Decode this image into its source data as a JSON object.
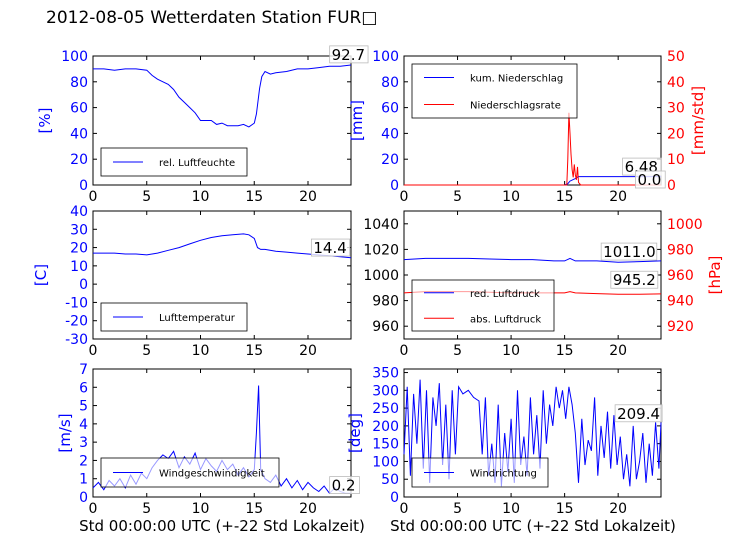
{
  "figure": {
    "title": "2012-08-05 Wetterdaten Station FUR□"
  },
  "chart_data": [
    {
      "type": "line",
      "id": "humidity",
      "title": "",
      "xlabel": "",
      "ylabel": "[%]",
      "xlim": [
        0,
        24
      ],
      "xticks": [
        0,
        5,
        10,
        15,
        20
      ],
      "ylim": [
        0,
        100
      ],
      "yticks": [
        0,
        20,
        40,
        60,
        80,
        100
      ],
      "series": [
        {
          "name": "rel. Luftfeuchte",
          "color": "#0000ff",
          "x": [
            0,
            1,
            2,
            3,
            4,
            5,
            5.5,
            6,
            6.5,
            7,
            7.5,
            8,
            8.5,
            9,
            9.5,
            10,
            10.5,
            11,
            11.5,
            12,
            12.5,
            13,
            13.5,
            14,
            14.5,
            15,
            15.2,
            15.5,
            15.7,
            16,
            16.5,
            17,
            18,
            19,
            20,
            21,
            22,
            23,
            24
          ],
          "y": [
            90,
            90,
            89,
            90,
            90,
            89,
            85,
            82,
            80,
            78,
            74,
            68,
            64,
            60,
            56,
            50,
            50,
            50,
            47,
            48,
            46,
            46,
            46,
            47,
            45,
            48,
            55,
            75,
            84,
            88,
            86,
            87,
            88,
            90,
            90,
            91,
            92,
            92,
            93
          ]
        }
      ],
      "annotations": [
        {
          "text": "92.7",
          "x": 22.2,
          "y": 97
        }
      ],
      "legend": {
        "placement": "lower-left"
      }
    },
    {
      "type": "line",
      "id": "precipitation",
      "title": "",
      "xlabel": "",
      "ylabel": "[mm]",
      "ylabel_right": "[mm/std]",
      "xlim": [
        0,
        24
      ],
      "xticks": [
        0,
        5,
        10,
        15,
        20
      ],
      "ylim": [
        0,
        100
      ],
      "yticks": [
        0,
        20,
        40,
        60,
        80,
        100
      ],
      "ylim_right": [
        0,
        50
      ],
      "yticks_right": [
        0,
        10,
        20,
        30,
        40,
        50
      ],
      "series": [
        {
          "name": "kum. Niederschlag",
          "color": "#0000ff",
          "axis": "left",
          "x": [
            0,
            14,
            15,
            15.3,
            15.5,
            16,
            16.3,
            24
          ],
          "y": [
            0,
            0,
            0,
            1,
            3,
            5,
            6.48,
            6.48
          ]
        },
        {
          "name": "Niederschlagsrate",
          "color": "#ff0000",
          "axis": "right",
          "x": [
            0,
            15.2,
            15.3,
            15.4,
            15.5,
            15.6,
            15.7,
            15.8,
            15.9,
            16.0,
            16.1,
            16.2,
            16.3,
            16.5,
            24
          ],
          "y": [
            0,
            0,
            10,
            28,
            20,
            12,
            6,
            3,
            8,
            4,
            2,
            7,
            1,
            0,
            0
          ]
        }
      ],
      "annotations": [
        {
          "text": "6.48",
          "x": 20.6,
          "y": 10
        },
        {
          "text": "0.0",
          "x": 21.8,
          "y": 0
        }
      ],
      "legend": {
        "placement": "upper-left"
      }
    },
    {
      "type": "line",
      "id": "temperature",
      "title": "",
      "xlabel": "",
      "ylabel": "[C]",
      "xlim": [
        0,
        24
      ],
      "xticks": [
        0,
        5,
        10,
        15,
        20
      ],
      "ylim": [
        -30,
        40
      ],
      "yticks": [
        -30,
        -20,
        -10,
        0,
        10,
        20,
        30,
        40
      ],
      "series": [
        {
          "name": "Lufttemperatur",
          "color": "#0000ff",
          "x": [
            0,
            1,
            2,
            3,
            4,
            5,
            6,
            7,
            8,
            9,
            10,
            11,
            12,
            13,
            14,
            14.5,
            15,
            15.3,
            15.6,
            16,
            17,
            18,
            19,
            20,
            21,
            22,
            23,
            24
          ],
          "y": [
            17,
            17,
            17,
            16.5,
            16.5,
            16,
            17,
            18.5,
            20,
            22,
            24,
            25.5,
            26.5,
            27,
            27.5,
            27,
            25,
            20,
            19,
            19,
            18,
            17.5,
            17,
            16.5,
            16,
            15.5,
            15,
            14.4
          ]
        }
      ],
      "annotations": [
        {
          "text": "14.4",
          "x": 20.5,
          "y": 17
        }
      ],
      "legend": {
        "placement": "lower-left"
      }
    },
    {
      "type": "line",
      "id": "pressure",
      "title": "",
      "xlabel": "",
      "ylabel": "",
      "ylabel_right": "[hPa]",
      "xlim": [
        0,
        24
      ],
      "xticks": [
        0,
        5,
        10,
        15,
        20
      ],
      "ylim": [
        950,
        1050
      ],
      "yticks": [
        960,
        980,
        1000,
        1020,
        1040
      ],
      "ylim_right": [
        910,
        1010
      ],
      "yticks_right": [
        920,
        940,
        960,
        980,
        1000
      ],
      "series": [
        {
          "name": "red. Luftdruck",
          "color": "#0000ff",
          "axis": "left",
          "x": [
            0,
            2,
            4,
            6,
            8,
            10,
            12,
            14,
            15,
            15.5,
            16,
            18,
            20,
            22,
            24
          ],
          "y": [
            1012,
            1013,
            1013,
            1013,
            1012.5,
            1012,
            1012,
            1011,
            1011,
            1013,
            1011,
            1011,
            1010,
            1010.5,
            1011
          ]
        },
        {
          "name": "abs. Luftdruck",
          "color": "#ff0000",
          "axis": "right",
          "x": [
            0,
            2,
            4,
            6,
            8,
            10,
            12,
            14,
            15,
            15.5,
            16,
            18,
            20,
            22,
            24
          ],
          "y": [
            946,
            947,
            947,
            947,
            946.5,
            946,
            946,
            946,
            946,
            947,
            946,
            945.5,
            945,
            945,
            945.2
          ]
        }
      ],
      "annotations": [
        {
          "text": "1011.0",
          "x": 18.6,
          "y": 1014
        },
        {
          "text": "945.2",
          "x": 19.5,
          "y": 992
        }
      ],
      "legend": {
        "placement": "lower-left"
      }
    },
    {
      "type": "line",
      "id": "wind-speed",
      "title": "",
      "xlabel": "Std 00:00:00 UTC (+-22 Std Lokalzeit)",
      "ylabel": "[m/s]",
      "xlim": [
        0,
        24
      ],
      "xticks": [
        0,
        5,
        10,
        15,
        20
      ],
      "ylim": [
        0,
        7
      ],
      "yticks": [
        0,
        1,
        2,
        3,
        4,
        5,
        6,
        7
      ],
      "series": [
        {
          "name": "Windgeschwindigkeit",
          "color": "#0000ff",
          "x": [
            0,
            0.5,
            1,
            1.5,
            2,
            2.5,
            3,
            3.5,
            4,
            4.5,
            5,
            5.5,
            6,
            6.5,
            7,
            7.5,
            8,
            8.5,
            9,
            9.5,
            10,
            10.5,
            11,
            11.5,
            12,
            12.5,
            13,
            13.5,
            14,
            14.5,
            15,
            15.2,
            15.4,
            15.6,
            16,
            16.5,
            17,
            17.5,
            18,
            18.5,
            19,
            19.5,
            20,
            20.5,
            21,
            21.5,
            22,
            22.5,
            23,
            23.5,
            24
          ],
          "y": [
            0.5,
            0.8,
            0.4,
            0.9,
            0.6,
            1.0,
            0.5,
            1.2,
            0.7,
            1.3,
            1.0,
            1.6,
            2.0,
            2.3,
            2.1,
            2.5,
            1.6,
            2.2,
            1.8,
            2.4,
            1.5,
            2.1,
            1.7,
            1.4,
            2.0,
            1.5,
            1.8,
            1.2,
            1.6,
            1.1,
            1.5,
            3.5,
            6.1,
            1.5,
            1.0,
            0.8,
            1.2,
            0.6,
            1.0,
            0.5,
            0.9,
            0.4,
            0.8,
            0.5,
            0.3,
            0.6,
            0.2,
            0.5,
            0.3,
            0.2,
            0.2
          ]
        }
      ],
      "annotations": [
        {
          "text": "0.2",
          "x": 22.2,
          "y": 0.35
        }
      ],
      "legend": {
        "placement": "lower-left"
      }
    },
    {
      "type": "line",
      "id": "wind-direction",
      "title": "",
      "xlabel": "Std 00:00:00 UTC (+-22 Std Lokalzeit)",
      "ylabel": "[deg]",
      "xlim": [
        0,
        24
      ],
      "xticks": [
        0,
        5,
        10,
        15,
        20
      ],
      "ylim": [
        0,
        360
      ],
      "yticks": [
        0,
        50,
        100,
        150,
        200,
        250,
        300,
        350
      ],
      "series": [
        {
          "name": "Windrichtung",
          "color": "#0000ff",
          "x": [
            0,
            0.3,
            0.6,
            0.9,
            1.2,
            1.5,
            1.8,
            2.1,
            2.4,
            2.7,
            3.0,
            3.3,
            3.6,
            3.9,
            4.2,
            4.5,
            4.8,
            5.1,
            5.5,
            6,
            6.5,
            7,
            7.3,
            7.6,
            7.9,
            8.2,
            8.5,
            8.8,
            9.1,
            9.4,
            9.7,
            10.0,
            10.3,
            10.6,
            10.9,
            11.2,
            11.5,
            11.8,
            12.1,
            12.4,
            12.7,
            13.0,
            13.3,
            13.6,
            13.9,
            14.2,
            14.5,
            14.8,
            15.1,
            15.4,
            15.7,
            16.0,
            16.3,
            16.6,
            16.9,
            17.2,
            17.5,
            17.8,
            18.1,
            18.4,
            18.7,
            19.0,
            19.3,
            19.6,
            19.9,
            20.2,
            20.5,
            20.8,
            21.1,
            21.4,
            21.7,
            22.0,
            22.3,
            22.6,
            22.9,
            23.2,
            23.5,
            23.8,
            24
          ],
          "y": [
            120,
            310,
            60,
            290,
            150,
            330,
            80,
            300,
            40,
            280,
            200,
            320,
            90,
            260,
            50,
            300,
            120,
            310,
            290,
            300,
            280,
            270,
            120,
            280,
            60,
            150,
            40,
            260,
            30,
            180,
            70,
            220,
            40,
            300,
            90,
            170,
            60,
            280,
            120,
            230,
            80,
            300,
            150,
            260,
            200,
            310,
            250,
            300,
            220,
            310,
            260,
            180,
            40,
            220,
            90,
            160,
            130,
            280,
            60,
            200,
            110,
            240,
            80,
            230,
            90,
            170,
            50,
            120,
            30,
            200,
            50,
            100,
            180,
            40,
            150,
            60,
            210,
            80,
            209.4
          ]
        }
      ],
      "annotations": [
        {
          "text": "209.4",
          "x": 19.9,
          "y": 220
        }
      ],
      "legend": {
        "placement": "lower-left"
      }
    }
  ]
}
